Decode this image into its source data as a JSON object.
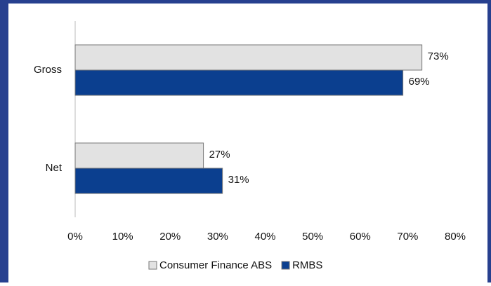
{
  "chart_data": {
    "type": "bar",
    "orientation": "horizontal",
    "categories": [
      "Gross",
      "Net"
    ],
    "series": [
      {
        "name": "Consumer Finance ABS",
        "color": "#e2e2e2",
        "values": [
          73,
          27
        ],
        "value_labels": [
          "73%",
          "27%"
        ]
      },
      {
        "name": "RMBS",
        "color": "#0b3f8f",
        "values": [
          69,
          31
        ],
        "value_labels": [
          "69%",
          "31%"
        ]
      }
    ],
    "xlim": [
      0,
      80
    ],
    "xticks": [
      {
        "value": 0,
        "label": "0%"
      },
      {
        "value": 10,
        "label": "10%"
      },
      {
        "value": 20,
        "label": "20%"
      },
      {
        "value": 30,
        "label": "30%"
      },
      {
        "value": 40,
        "label": "40%"
      },
      {
        "value": 50,
        "label": "50%"
      },
      {
        "value": 60,
        "label": "60%"
      },
      {
        "value": 70,
        "label": "70%"
      },
      {
        "value": 80,
        "label": "80%"
      }
    ],
    "grid": false,
    "legend": "bottom"
  }
}
